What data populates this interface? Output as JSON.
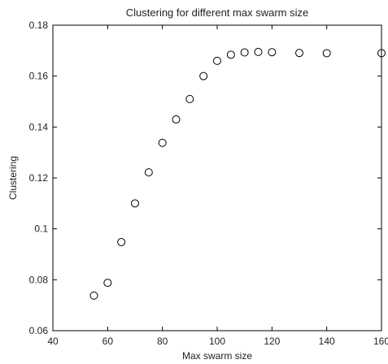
{
  "chart_data": {
    "type": "scatter",
    "title": "Clustering for different max swarm size",
    "xlabel": "Max swarm size",
    "ylabel": "Clustering",
    "xlim": [
      40,
      160
    ],
    "ylim": [
      0.06,
      0.18
    ],
    "x_ticks": [
      "40",
      "60",
      "80",
      "100",
      "120",
      "140",
      "160"
    ],
    "y_ticks": [
      "0.06",
      "0.08",
      "0.1",
      "0.12",
      "0.14",
      "0.16",
      "0.18"
    ],
    "grid": false,
    "marker": "open-circle",
    "colors": {
      "axis": "#000000",
      "marker": "#000000",
      "background": "#ffffff"
    },
    "series": [
      {
        "x": [
          55,
          60,
          65,
          70,
          75,
          80,
          85,
          90,
          95,
          100,
          105,
          110,
          115,
          120,
          130,
          140,
          160
        ],
        "y": [
          0.0738,
          0.0788,
          0.0948,
          0.11,
          0.1222,
          0.1338,
          0.143,
          0.151,
          0.16,
          0.166,
          0.1684,
          0.1693,
          0.1695,
          0.1694,
          0.1691,
          0.169,
          0.169
        ]
      }
    ]
  }
}
